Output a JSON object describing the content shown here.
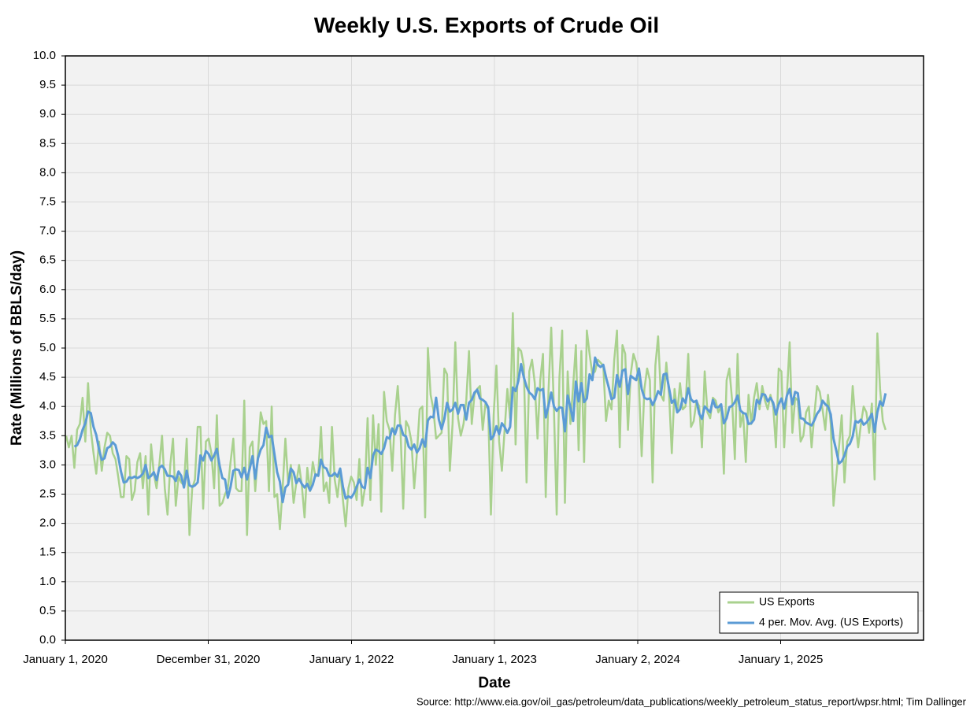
{
  "chart_data": {
    "type": "line",
    "title": "Weekly U.S. Exports of Crude Oil",
    "x_label": "Date",
    "y_label": "Rate (Millions of BBLS/day)",
    "source": "Source: http://www.eia.gov/oil_gas/petroleum/data_publications/weekly_petroleum_status_report/wpsr.html; Tim Dallinger",
    "xlim": [
      "2020-01-01",
      "2026-01-01"
    ],
    "xticks": [
      {
        "value": "2020-01-01",
        "label": "January 1, 2020"
      },
      {
        "value": "2020-12-31",
        "label": "December 31, 2020"
      },
      {
        "value": "2022-01-01",
        "label": "January 1, 2022"
      },
      {
        "value": "2023-01-01",
        "label": "January 1, 2023"
      },
      {
        "value": "2024-01-02",
        "label": "January 2, 2024"
      },
      {
        "value": "2025-01-01",
        "label": "January 1, 2025"
      }
    ],
    "ylim": [
      0,
      10
    ],
    "yticks": [
      {
        "value": 0,
        "label": "0.0"
      },
      0.5,
      {
        "value": 1,
        "label": "1.0"
      },
      1.5,
      {
        "value": 2,
        "label": "2.0"
      },
      2.5,
      {
        "value": 3,
        "label": "3.0"
      },
      3.5,
      {
        "value": 4,
        "label": "4.0"
      },
      4.5,
      {
        "value": 5,
        "label": "5.0"
      },
      5.5,
      {
        "value": 6,
        "label": "6.0"
      },
      6.5,
      {
        "value": 7,
        "label": "7.0"
      },
      7.5,
      {
        "value": 8,
        "label": "8.0"
      },
      8.5,
      {
        "value": 9,
        "label": "9.0"
      },
      9.5,
      {
        "value": 10,
        "label": "10.0"
      }
    ],
    "grid": true,
    "legend": "bottom-right",
    "x": [
      "2020-01-03",
      "2020-01-10",
      "2020-01-17",
      "2020-01-24",
      "2020-01-31",
      "2020-02-07",
      "2020-02-14",
      "2020-02-21",
      "2020-02-28",
      "2020-03-06",
      "2020-03-13",
      "2020-03-20",
      "2020-03-27",
      "2020-04-03",
      "2020-04-10",
      "2020-04-17",
      "2020-04-24",
      "2020-05-01",
      "2020-05-08",
      "2020-05-15",
      "2020-05-22",
      "2020-05-29",
      "2020-06-05",
      "2020-06-12",
      "2020-06-19",
      "2020-06-26",
      "2020-07-03",
      "2020-07-10",
      "2020-07-17",
      "2020-07-24",
      "2020-07-31",
      "2020-08-07",
      "2020-08-14",
      "2020-08-21",
      "2020-08-28",
      "2020-09-04",
      "2020-09-11",
      "2020-09-18",
      "2020-09-25",
      "2020-10-02",
      "2020-10-09",
      "2020-10-16",
      "2020-10-23",
      "2020-10-30",
      "2020-11-06",
      "2020-11-13",
      "2020-11-20",
      "2020-11-27",
      "2020-12-04",
      "2020-12-11",
      "2020-12-18",
      "2020-12-25",
      "2021-01-01",
      "2021-01-08",
      "2021-01-15",
      "2021-01-22",
      "2021-01-29",
      "2021-02-05",
      "2021-02-12",
      "2021-02-19",
      "2021-02-26",
      "2021-03-05",
      "2021-03-12",
      "2021-03-19",
      "2021-03-26",
      "2021-04-02",
      "2021-04-09",
      "2021-04-16",
      "2021-04-23",
      "2021-04-30",
      "2021-05-07",
      "2021-05-14",
      "2021-05-21",
      "2021-05-28",
      "2021-06-04",
      "2021-06-11",
      "2021-06-18",
      "2021-06-25",
      "2021-07-02",
      "2021-07-09",
      "2021-07-16",
      "2021-07-23",
      "2021-07-30",
      "2021-08-06",
      "2021-08-13",
      "2021-08-20",
      "2021-08-27",
      "2021-09-03",
      "2021-09-10",
      "2021-09-17",
      "2021-09-24",
      "2021-10-01",
      "2021-10-08",
      "2021-10-15",
      "2021-10-22",
      "2021-10-29",
      "2021-11-05",
      "2021-11-12",
      "2021-11-19",
      "2021-11-26",
      "2021-12-03",
      "2021-12-10",
      "2021-12-17",
      "2021-12-24",
      "2021-12-31",
      "2022-01-07",
      "2022-01-14",
      "2022-01-21",
      "2022-01-28",
      "2022-02-04",
      "2022-02-11",
      "2022-02-18",
      "2022-02-25",
      "2022-03-04",
      "2022-03-11",
      "2022-03-18",
      "2022-03-25",
      "2022-04-01",
      "2022-04-08",
      "2022-04-15",
      "2022-04-22",
      "2022-04-29",
      "2022-05-06",
      "2022-05-13",
      "2022-05-20",
      "2022-05-27",
      "2022-06-03",
      "2022-06-10",
      "2022-06-17",
      "2022-06-24",
      "2022-07-01",
      "2022-07-08",
      "2022-07-15",
      "2022-07-22",
      "2022-07-29",
      "2022-08-05",
      "2022-08-12",
      "2022-08-19",
      "2022-08-26",
      "2022-09-02",
      "2022-09-09",
      "2022-09-16",
      "2022-09-23",
      "2022-09-30",
      "2022-10-07",
      "2022-10-14",
      "2022-10-21",
      "2022-10-28",
      "2022-11-04",
      "2022-11-11",
      "2022-11-18",
      "2022-11-25",
      "2022-12-02",
      "2022-12-09",
      "2022-12-16",
      "2022-12-23",
      "2022-12-30",
      "2023-01-06",
      "2023-01-13",
      "2023-01-20",
      "2023-01-27",
      "2023-02-03",
      "2023-02-10",
      "2023-02-17",
      "2023-02-24",
      "2023-03-03",
      "2023-03-10",
      "2023-03-17",
      "2023-03-24",
      "2023-03-31",
      "2023-04-07",
      "2023-04-14",
      "2023-04-21",
      "2023-04-28",
      "2023-05-05",
      "2023-05-12",
      "2023-05-19",
      "2023-05-26",
      "2023-06-02",
      "2023-06-09",
      "2023-06-16",
      "2023-06-23",
      "2023-06-30",
      "2023-07-07",
      "2023-07-14",
      "2023-07-21",
      "2023-07-28",
      "2023-08-04",
      "2023-08-11",
      "2023-08-18",
      "2023-08-25",
      "2023-09-01",
      "2023-09-08",
      "2023-09-15",
      "2023-09-22",
      "2023-09-29",
      "2023-10-06",
      "2023-10-13",
      "2023-10-20",
      "2023-10-27",
      "2023-11-03",
      "2023-11-10",
      "2023-11-17",
      "2023-11-24",
      "2023-12-01",
      "2023-12-08",
      "2023-12-15",
      "2023-12-22",
      "2023-12-29",
      "2024-01-05",
      "2024-01-12",
      "2024-01-19",
      "2024-01-26",
      "2024-02-02",
      "2024-02-09",
      "2024-02-16",
      "2024-02-23",
      "2024-03-01",
      "2024-03-08",
      "2024-03-15",
      "2024-03-22",
      "2024-03-29",
      "2024-04-05",
      "2024-04-12",
      "2024-04-19",
      "2024-04-26",
      "2024-05-03",
      "2024-05-10",
      "2024-05-17",
      "2024-05-24",
      "2024-05-31",
      "2024-06-07",
      "2024-06-14",
      "2024-06-21",
      "2024-06-28",
      "2024-07-05",
      "2024-07-12",
      "2024-07-19",
      "2024-07-26",
      "2024-08-02",
      "2024-08-09",
      "2024-08-16",
      "2024-08-23",
      "2024-08-30",
      "2024-09-06",
      "2024-09-13",
      "2024-09-20",
      "2024-09-27",
      "2024-10-04",
      "2024-10-11",
      "2024-10-18",
      "2024-10-25",
      "2024-11-01",
      "2024-11-08",
      "2024-11-15",
      "2024-11-22",
      "2024-11-29",
      "2024-12-06",
      "2024-12-13",
      "2024-12-20",
      "2024-12-27",
      "2025-01-03",
      "2025-01-10",
      "2025-01-17",
      "2025-01-24",
      "2025-01-31",
      "2025-02-07",
      "2025-02-14",
      "2025-02-21",
      "2025-02-28",
      "2025-03-07",
      "2025-03-14",
      "2025-03-21",
      "2025-03-28",
      "2025-04-04",
      "2025-04-11",
      "2025-04-18",
      "2025-04-25",
      "2025-05-02",
      "2025-05-09",
      "2025-05-16",
      "2025-05-23",
      "2025-05-30",
      "2025-06-06",
      "2025-06-13",
      "2025-06-20",
      "2025-06-27",
      "2025-07-04",
      "2025-07-11",
      "2025-07-18",
      "2025-07-25",
      "2025-08-01",
      "2025-08-08",
      "2025-08-15",
      "2025-08-22",
      "2025-08-29",
      "2025-09-05",
      "2025-09-12",
      "2025-09-19",
      "2025-09-26"
    ],
    "series": [
      {
        "name": "US Exports",
        "color": "#a9d18e",
        "trendline": {
          "type": "moving_average",
          "period": 4,
          "name": "4 per. Mov. Avg. (US Exports)",
          "color": "#5b9bd5"
        },
        "values": [
          3.5,
          3.3,
          3.5,
          2.95,
          3.6,
          3.7,
          4.15,
          3.4,
          4.4,
          3.6,
          3.2,
          2.85,
          3.4,
          2.9,
          3.3,
          3.55,
          3.5,
          3.2,
          3.1,
          2.8,
          2.45,
          2.45,
          3.15,
          3.1,
          2.4,
          2.55,
          3.05,
          3.2,
          2.6,
          3.15,
          2.15,
          3.35,
          2.85,
          2.6,
          3.0,
          3.5,
          2.6,
          2.15,
          3.0,
          3.45,
          2.3,
          2.8,
          2.7,
          2.65,
          3.45,
          1.8,
          2.6,
          2.75,
          3.65,
          3.65,
          2.25,
          3.4,
          3.45,
          3.2,
          2.6,
          3.85,
          2.3,
          2.35,
          2.5,
          2.6,
          3.05,
          3.45,
          2.6,
          2.55,
          2.55,
          4.1,
          1.8,
          3.3,
          3.4,
          2.55,
          3.2,
          3.9,
          3.7,
          3.75,
          2.55,
          4.0,
          2.45,
          2.5,
          1.9,
          2.6,
          3.45,
          2.7,
          3.0,
          2.35,
          2.7,
          3.0,
          2.65,
          2.1,
          2.95,
          2.55,
          3.05,
          2.8,
          2.85,
          3.65,
          2.55,
          2.7,
          2.35,
          3.65,
          2.75,
          2.45,
          2.9,
          2.4,
          1.95,
          2.6,
          2.8,
          2.7,
          2.4,
          3.1,
          2.3,
          2.6,
          3.8,
          2.4,
          3.85,
          3.0,
          3.7,
          2.2,
          4.25,
          3.75,
          3.6,
          2.9,
          3.85,
          4.35,
          3.6,
          2.25,
          3.75,
          3.65,
          3.4,
          2.6,
          3.2,
          3.95,
          4.0,
          2.1,
          5.0,
          4.2,
          3.95,
          3.45,
          3.5,
          3.55,
          4.65,
          4.55,
          2.9,
          3.7,
          5.1,
          3.8,
          3.5,
          3.7,
          4.1,
          4.95,
          3.7,
          4.2,
          4.3,
          4.35,
          3.6,
          4.05,
          3.95,
          2.15,
          3.85,
          4.7,
          3.4,
          2.9,
          3.6,
          4.3,
          3.8,
          5.6,
          3.35,
          5.0,
          4.95,
          4.7,
          2.7,
          4.6,
          4.8,
          4.4,
          3.45,
          4.45,
          4.9,
          2.45,
          4.25,
          5.35,
          3.95,
          2.15,
          4.5,
          5.3,
          2.35,
          4.6,
          3.7,
          4.35,
          5.05,
          3.25,
          4.95,
          3.05,
          5.3,
          4.9,
          4.55,
          4.6,
          4.8,
          4.75,
          4.7,
          3.75,
          4.1,
          3.95,
          4.8,
          5.3,
          3.3,
          5.05,
          4.9,
          3.6,
          4.55,
          4.9,
          4.75,
          4.4,
          3.15,
          4.3,
          4.65,
          4.45,
          2.7,
          4.7,
          5.2,
          4.2,
          4.1,
          4.75,
          4.2,
          3.2,
          4.3,
          3.9,
          4.4,
          3.95,
          4.0,
          4.9,
          3.65,
          3.75,
          4.1,
          4.0,
          3.3,
          4.6,
          3.9,
          3.8,
          4.15,
          4.1,
          3.9,
          4.0,
          2.85,
          4.45,
          4.65,
          4.1,
          3.1,
          4.9,
          3.65,
          3.9,
          3.05,
          4.2,
          3.7,
          4.15,
          4.4,
          3.95,
          4.35,
          4.1,
          3.95,
          4.2,
          4.0,
          3.3,
          4.65,
          4.6,
          3.3,
          4.2,
          5.1,
          3.55,
          4.15,
          4.1,
          3.4,
          3.5,
          3.9,
          4.0,
          3.3,
          3.85,
          4.35,
          4.25,
          3.95,
          3.6,
          4.2,
          3.7,
          2.3,
          2.8,
          3.3,
          3.85,
          2.7,
          3.4,
          3.5,
          4.35,
          3.75,
          3.3,
          3.7,
          4.0,
          3.9,
          3.55,
          4.05,
          2.75,
          5.25,
          4.3,
          3.75,
          3.6
        ]
      }
    ]
  }
}
